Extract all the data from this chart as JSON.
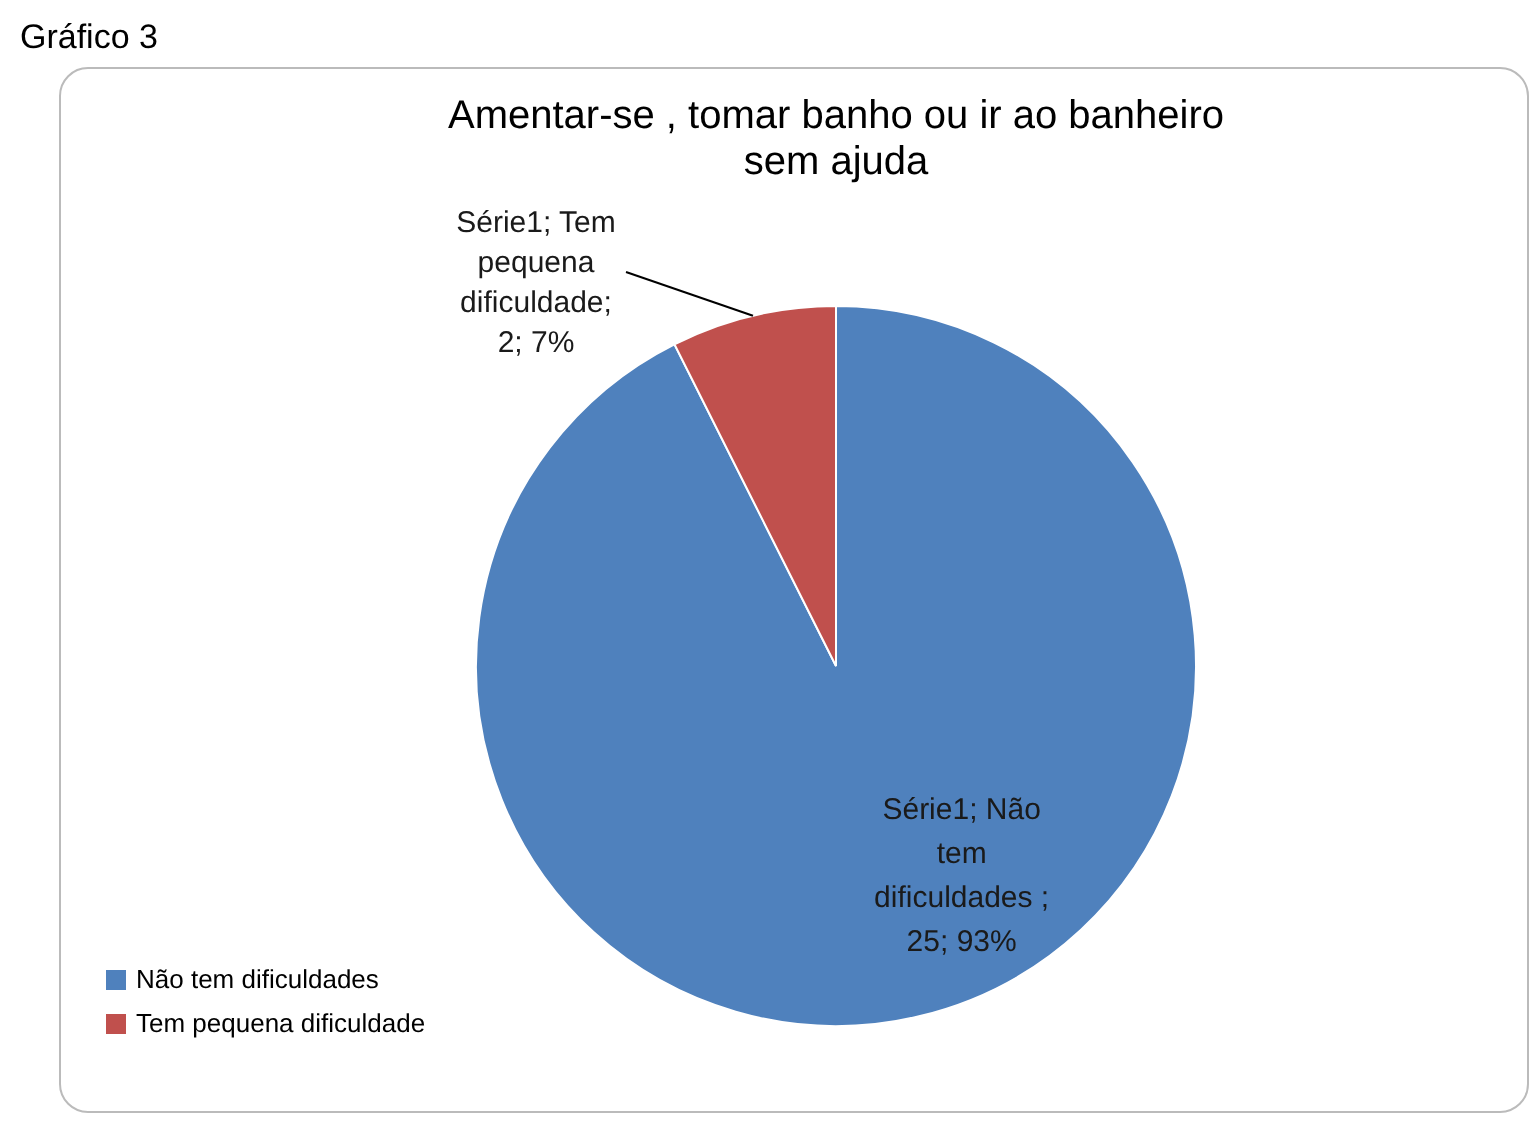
{
  "chart_data": {
    "type": "pie",
    "title": "Amentar-se , tomar banho ou ir ao banheiro sem ajuda",
    "categories": [
      "Não tem dificuldades",
      "Tem pequena dificuldade"
    ],
    "values": [
      25,
      2
    ],
    "colors": [
      "#4f81bd",
      "#c0504d"
    ],
    "value_labels": [
      "Série1; Não tem dificuldades ; 25; 93%",
      "Série1; Tem pequena dificuldade; 2; 7%"
    ],
    "legend": "bottom left",
    "annotations": [
      "Gráfico 3"
    ]
  }
}
